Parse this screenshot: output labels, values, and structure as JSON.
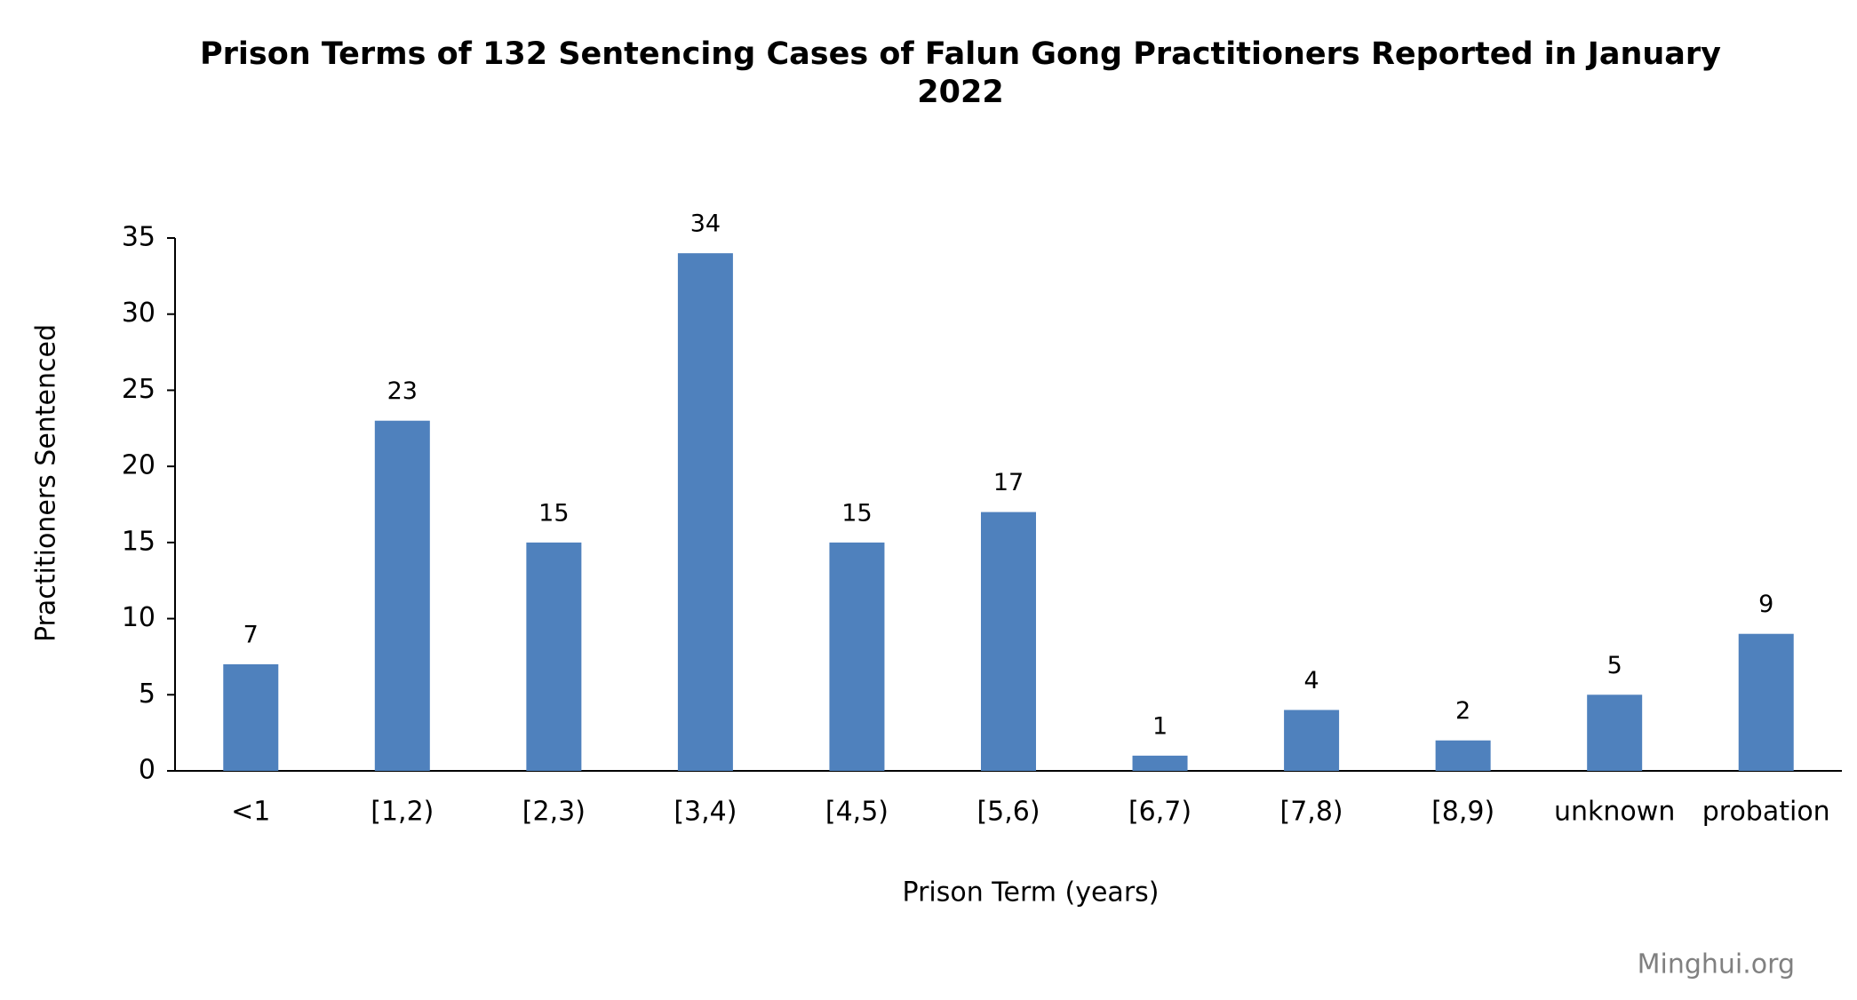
{
  "chart_data": {
    "type": "bar",
    "title": "Prison Terms of 132 Sentencing Cases of Falun Gong Practitioners Reported in January 2022",
    "x_label": "Prison Term (years)",
    "y_label": "Practitioners Sentenced",
    "watermark": "Minghui.org",
    "categories": [
      "<1",
      "[1,2)",
      "[2,3)",
      "[3,4)",
      "[4,5)",
      "[5,6)",
      "[6,7)",
      "[7,8)",
      "[8,9)",
      "unknown",
      "probation"
    ],
    "values": [
      7,
      23,
      15,
      34,
      15,
      17,
      1,
      4,
      2,
      5,
      9
    ],
    "color": "#4f81bd",
    "ylim": [
      0,
      35
    ],
    "yticks": [
      0,
      5,
      10,
      15,
      20,
      25,
      30,
      35
    ],
    "grid": false
  }
}
